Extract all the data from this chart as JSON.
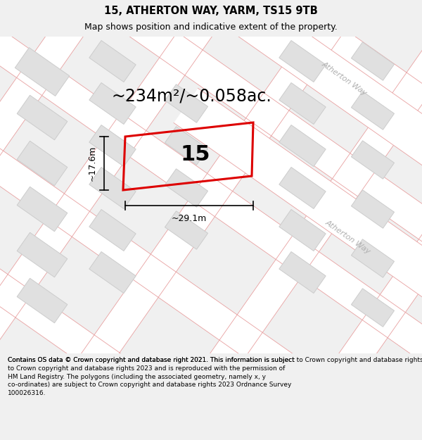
{
  "title": "15, ATHERTON WAY, YARM, TS15 9TB",
  "subtitle": "Map shows position and indicative extent of the property.",
  "area_text": "~234m²/~0.058ac.",
  "label_15": "15",
  "dim_width": "~29.1m",
  "dim_height": "~17.6m",
  "road_label_top": "Atherton Way",
  "road_label_bottom": "Atherton Way",
  "footer": "Contains OS data © Crown copyright and database right 2021. This information is subject to Crown copyright and database rights 2023 and is reproduced with the permission of HM Land Registry. The polygons (including the associated geometry, namely x, y co-ordinates) are subject to Crown copyright and database rights 2023 Ordnance Survey 100026316.",
  "bg_color": "#f0f0f0",
  "map_bg": "#ebebeb",
  "road_color": "#ffffff",
  "plot_outline_color": "#dd0000",
  "building_fill": "#e0e0e0",
  "building_outline": "#cccccc",
  "road_line_color": "#e8a0a0",
  "title_fontsize": 10.5,
  "subtitle_fontsize": 9,
  "area_fontsize": 17,
  "label_fontsize": 22,
  "dim_fontsize": 9,
  "footer_fontsize": 6.5
}
